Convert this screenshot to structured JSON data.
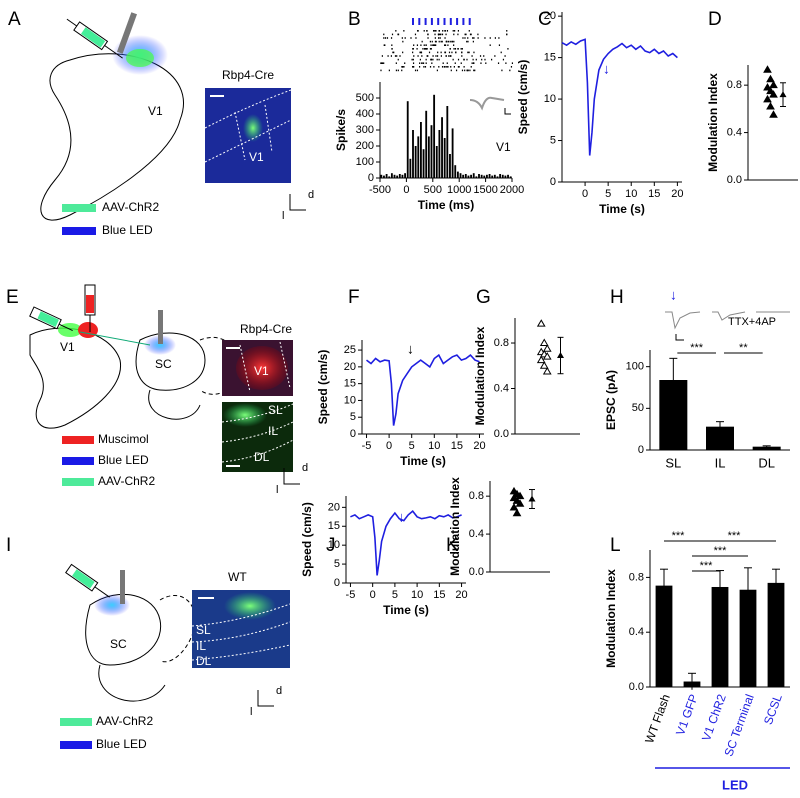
{
  "panels": [
    "A",
    "B",
    "C",
    "D",
    "E",
    "F",
    "G",
    "H",
    "I",
    "J",
    "K",
    "L"
  ],
  "panel_A": {
    "region": "V1",
    "image_title": "Rbp4-Cre",
    "image_region": "V1",
    "legend": [
      "AAV-ChR2",
      "Blue LED"
    ],
    "axis": [
      "d",
      "l"
    ]
  },
  "panel_E": {
    "region_1": "V1",
    "region_2": "SC",
    "image_title": "Rbp4-Cre",
    "image_region": "V1",
    "layers": [
      "SL",
      "IL",
      "DL"
    ],
    "legend": [
      "Muscimol",
      "Blue LED",
      "AAV-ChR2"
    ],
    "axis": [
      "d",
      "l"
    ]
  },
  "panel_I": {
    "region": "SC",
    "image_title": "WT",
    "layers": [
      "SL",
      "IL",
      "DL"
    ],
    "legend": [
      "AAV-ChR2",
      "Blue LED"
    ],
    "axis": [
      "d",
      "l"
    ]
  },
  "chart_data": [
    {
      "type": "histogram",
      "y_label": "Spike/s",
      "x_label": "Time (ms)",
      "annotation": "V1",
      "color": "#000000",
      "bins": [
        -500,
        -450,
        -400,
        -350,
        -300,
        -250,
        -200,
        -150,
        -100,
        -50,
        0,
        50,
        100,
        150,
        200,
        250,
        300,
        350,
        400,
        450,
        500,
        550,
        600,
        650,
        700,
        750,
        800,
        850,
        900,
        950,
        1000,
        1050,
        1100,
        1150,
        1200,
        1250,
        1300,
        1350,
        1400,
        1450,
        1500,
        1550,
        1600,
        1650,
        1700,
        1750,
        1800,
        1850,
        1900,
        1950,
        2000
      ],
      "values": [
        20,
        15,
        25,
        10,
        30,
        20,
        15,
        25,
        20,
        30,
        480,
        120,
        300,
        200,
        260,
        350,
        180,
        420,
        260,
        330,
        520,
        200,
        300,
        380,
        250,
        450,
        150,
        310,
        80,
        40,
        30,
        20,
        25,
        15,
        20,
        30,
        10,
        25,
        20,
        15,
        20,
        25,
        15,
        20,
        10,
        25,
        20,
        15,
        20,
        10
      ],
      "xlim": [
        -500,
        2000
      ],
      "xticks": [
        -500,
        0,
        500,
        1000,
        1500,
        2000
      ],
      "ylim": [
        0,
        600
      ],
      "yticks": [
        0,
        100,
        200,
        300,
        400,
        500
      ]
    },
    {
      "type": "line",
      "y_label": "Speed (cm/s)",
      "x_label": "Time (s)",
      "color": "#1f1fe0",
      "x": [
        -5,
        -4,
        -3,
        -2,
        -1,
        0,
        0.5,
        1,
        1.5,
        2,
        3,
        4,
        5,
        6,
        7,
        8,
        9,
        10,
        11,
        12,
        13,
        14,
        15,
        16,
        17,
        18,
        19,
        20
      ],
      "values": [
        16.8,
        16.5,
        16.9,
        16.6,
        17,
        17.2,
        12,
        3.2,
        6,
        10,
        13.5,
        14.8,
        15.5,
        16,
        16.3,
        16.7,
        16.2,
        16.5,
        16,
        16.4,
        15.8,
        15.6,
        16,
        15.5,
        15.8,
        15.2,
        15.5,
        15
      ],
      "xlim": [
        -5,
        21
      ],
      "xticks": [
        0,
        5,
        10,
        15,
        20
      ],
      "ylim": [
        0,
        20.5
      ],
      "yticks": [
        0,
        5,
        10,
        15,
        20
      ]
    },
    {
      "type": "scatter",
      "y_label": "Modulation Index",
      "marker_filled": true,
      "values": [
        0.93,
        0.85,
        0.8,
        0.78,
        0.75,
        0.72,
        0.68,
        0.62,
        0.55
      ],
      "mean": 0.72,
      "error": 0.1,
      "ylim": [
        0,
        0.97
      ],
      "yticks": [
        {
          "value": 0,
          "label": "0.0"
        },
        {
          "value": 0.4,
          "label": "0.4"
        },
        {
          "value": 0.8,
          "label": "0.8"
        }
      ]
    },
    {
      "type": "line",
      "y_label": "Speed (cm/s)",
      "x_label": "Time (s)",
      "color": "#1f1fe0",
      "x": [
        -5,
        -4,
        -3,
        -2,
        -1,
        0,
        0.5,
        1,
        1.5,
        2,
        3,
        4,
        5,
        6,
        7,
        8,
        9,
        10,
        11,
        12,
        13,
        14,
        15,
        16,
        17,
        18,
        19,
        20
      ],
      "values": [
        22,
        21,
        22.5,
        21.5,
        22,
        21.8,
        15,
        2.5,
        6,
        12,
        16,
        18,
        20,
        21,
        22,
        21,
        20,
        22.5,
        23.5,
        21,
        22,
        23,
        23.5,
        22,
        22.5,
        23.5,
        22,
        21.5
      ],
      "xlim": [
        -6,
        21
      ],
      "xticks": [
        -5,
        0,
        5,
        10,
        15,
        20
      ],
      "ylim": [
        0,
        28
      ],
      "yticks": [
        0,
        5,
        10,
        15,
        20,
        25
      ]
    },
    {
      "type": "scatter",
      "y_label": "Modulation Index",
      "marker_filled": false,
      "values": [
        0.97,
        0.8,
        0.75,
        0.72,
        0.7,
        0.68,
        0.65,
        0.6,
        0.55
      ],
      "mean": 0.69,
      "error": 0.16,
      "ylim": [
        0,
        1.02
      ],
      "yticks": [
        {
          "value": 0,
          "label": "0.0"
        },
        {
          "value": 0.4,
          "label": "0.4"
        },
        {
          "value": 0.8,
          "label": "0.8"
        }
      ]
    },
    {
      "type": "bar",
      "y_label": "EPSC (pA)",
      "annotation": "TTX+4AP",
      "color": "#000000",
      "categories": [
        "SL",
        "IL",
        "DL"
      ],
      "values": [
        84,
        28,
        4
      ],
      "error": [
        26,
        6,
        1
      ],
      "significance": [
        "***",
        "**"
      ],
      "ylim": [
        0,
        120
      ],
      "yticks": [
        0,
        50,
        100
      ]
    },
    {
      "type": "line",
      "y_label": "Speed (cm/s)",
      "x_label": "Time (s)",
      "color": "#1f1fe0",
      "x": [
        -5,
        -4,
        -3,
        -2,
        -1,
        0,
        0.5,
        1,
        1.5,
        2,
        3,
        4,
        5,
        6,
        7,
        8,
        9,
        10,
        11,
        12,
        13,
        14,
        15,
        16,
        17,
        18,
        19,
        20
      ],
      "values": [
        17.5,
        18,
        17,
        17.5,
        18,
        17.5,
        12,
        2,
        6,
        11,
        15,
        17,
        18.5,
        17,
        16.5,
        18,
        19,
        17.5,
        17,
        17.2,
        17.5,
        17,
        17.8,
        17.5,
        18,
        17.2,
        17.5,
        18
      ],
      "xlim": [
        -6,
        21
      ],
      "xticks": [
        -5,
        0,
        5,
        10,
        15,
        20
      ],
      "ylim": [
        0,
        23
      ],
      "yticks": [
        0,
        5,
        10,
        15,
        20
      ]
    },
    {
      "type": "scatter",
      "y_label": "Modulation Index",
      "marker_filled": true,
      "values": [
        0.85,
        0.82,
        0.8,
        0.78,
        0.75,
        0.72,
        0.68,
        0.62
      ],
      "mean": 0.77,
      "error": 0.1,
      "ylim": [
        0,
        0.96
      ],
      "yticks": [
        {
          "value": 0,
          "label": "0.0"
        },
        {
          "value": 0.4,
          "label": "0.4"
        },
        {
          "value": 0.8,
          "label": "0.8"
        }
      ]
    },
    {
      "type": "bar",
      "y_label": "Modulation Index",
      "color": "#000000",
      "categories": [
        "WT Flash",
        "V1 GFP",
        "V1 ChR2",
        "SC Terminal",
        "SCSL"
      ],
      "category_colors": [
        "#000000",
        "#1f1fe0",
        "#1f1fe0",
        "#1f1fe0",
        "#1f1fe0"
      ],
      "values": [
        0.74,
        0.04,
        0.73,
        0.71,
        0.76
      ],
      "error": [
        0.12,
        0.06,
        0.12,
        0.16,
        0.1
      ],
      "significance": [
        "***",
        "***",
        "***",
        "***"
      ],
      "group_label": "LED",
      "ylim": [
        0,
        1.0
      ],
      "yticks": [
        {
          "value": 0,
          "label": "0.0"
        },
        {
          "value": 0.4,
          "label": "0.4"
        },
        {
          "value": 0.8,
          "label": "0.8"
        }
      ]
    }
  ]
}
